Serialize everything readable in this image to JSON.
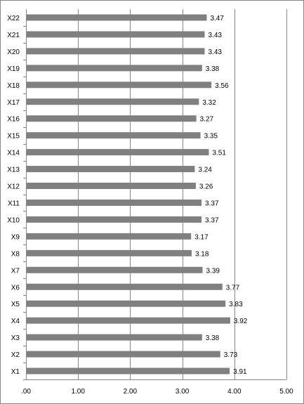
{
  "chart_data": {
    "type": "bar",
    "orientation": "horizontal",
    "title": "",
    "xlabel": "",
    "ylabel": "",
    "categories": [
      "X1",
      "X2",
      "X3",
      "X4",
      "X5",
      "X6",
      "X7",
      "X8",
      "X9",
      "X10",
      "X11",
      "X12",
      "X13",
      "X14",
      "X15",
      "X16",
      "X17",
      "X18",
      "X19",
      "X20",
      "X21",
      "X22"
    ],
    "values": [
      3.91,
      3.73,
      3.38,
      3.92,
      3.83,
      3.77,
      3.39,
      3.18,
      3.17,
      3.37,
      3.37,
      3.26,
      3.24,
      3.51,
      3.35,
      3.27,
      3.32,
      3.56,
      3.38,
      3.43,
      3.43,
      3.47
    ],
    "value_labels": [
      "3.91",
      "3.73",
      "3.38",
      "3.92",
      "3.83",
      "3.77",
      "3.39",
      "3.18",
      "3.17",
      "3.37",
      "3.37",
      "3.26",
      "3.24",
      "3.51",
      "3.35",
      "3.27",
      "3.32",
      "3.56",
      "3.38",
      "3.43",
      "3.43",
      "3.47"
    ],
    "xlim": [
      0,
      5
    ],
    "x_ticks": [
      0,
      1,
      2,
      3,
      4,
      5
    ],
    "x_tick_labels": [
      ".00",
      "1.00",
      "2.00",
      "3.00",
      "4.00",
      "5.00"
    ],
    "grid": "vertical",
    "legend": "none",
    "bar_color": "#808080",
    "grid_color": "#868686"
  }
}
